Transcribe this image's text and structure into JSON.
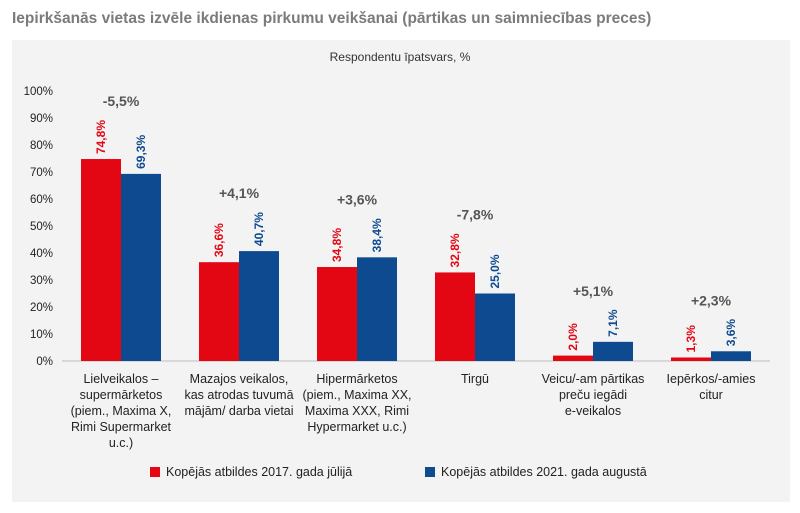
{
  "title": "Iepirkšanās vietas izvēle ikdienas pirkumu veikšanai (pārtikas un saimniecības preces)",
  "colors": {
    "series_2017": "#e30613",
    "series_2021": "#0d4a8f",
    "change": "#555555",
    "panel": "#f3f3f3"
  },
  "chart_data": {
    "type": "bar",
    "title": "Iepirkšanās vietas izvēle ikdienas pirkumu veikšanai (pārtikas un saimniecības preces)",
    "subtitle": "Respondentu īpatsvars, %",
    "ylim": [
      0,
      100
    ],
    "yticks": [
      "0%",
      "10%",
      "20%",
      "30%",
      "40%",
      "50%",
      "60%",
      "70%",
      "80%",
      "90%",
      "100%"
    ],
    "grid": false,
    "legend_position": "bottom",
    "categories": [
      [
        "Lielveikalos –",
        "supermārketos",
        "(piem., Maxima X,",
        "Rimi Supermarket",
        "u.c.)"
      ],
      [
        "Mazajos veikalos,",
        "kas atrodas tuvumā",
        "mājām/ darba vietai"
      ],
      [
        "Hipermārketos",
        "(piem., Maxima XX,",
        "Maxima XXX, Rimi",
        "Hypermarket u.c.)"
      ],
      [
        "Tirgū"
      ],
      [
        "Veicu/-am pārtikas",
        "preču iegādi",
        "e-veikalos"
      ],
      [
        "Iepērkos/-amies",
        "citur"
      ]
    ],
    "series": [
      {
        "name": "Kopējās atbildes 2017. gada jūlijā",
        "values": [
          74.8,
          36.6,
          34.8,
          32.8,
          2.0,
          1.3
        ],
        "labels": [
          "74,8%",
          "36,6%",
          "34,8%",
          "32,8%",
          "2,0%",
          "1,3%"
        ]
      },
      {
        "name": "Kopējās atbildes 2021. gada augustā",
        "values": [
          69.3,
          40.7,
          38.4,
          25.0,
          7.1,
          3.6
        ],
        "labels": [
          "69,3%",
          "40,7%",
          "38,4%",
          "25,0%",
          "7,1%",
          "3,6%"
        ]
      }
    ],
    "changes": [
      "-5,5%",
      "+4,1%",
      "+3,6%",
      "-7,8%",
      "+5,1%",
      "+2,3%"
    ]
  }
}
